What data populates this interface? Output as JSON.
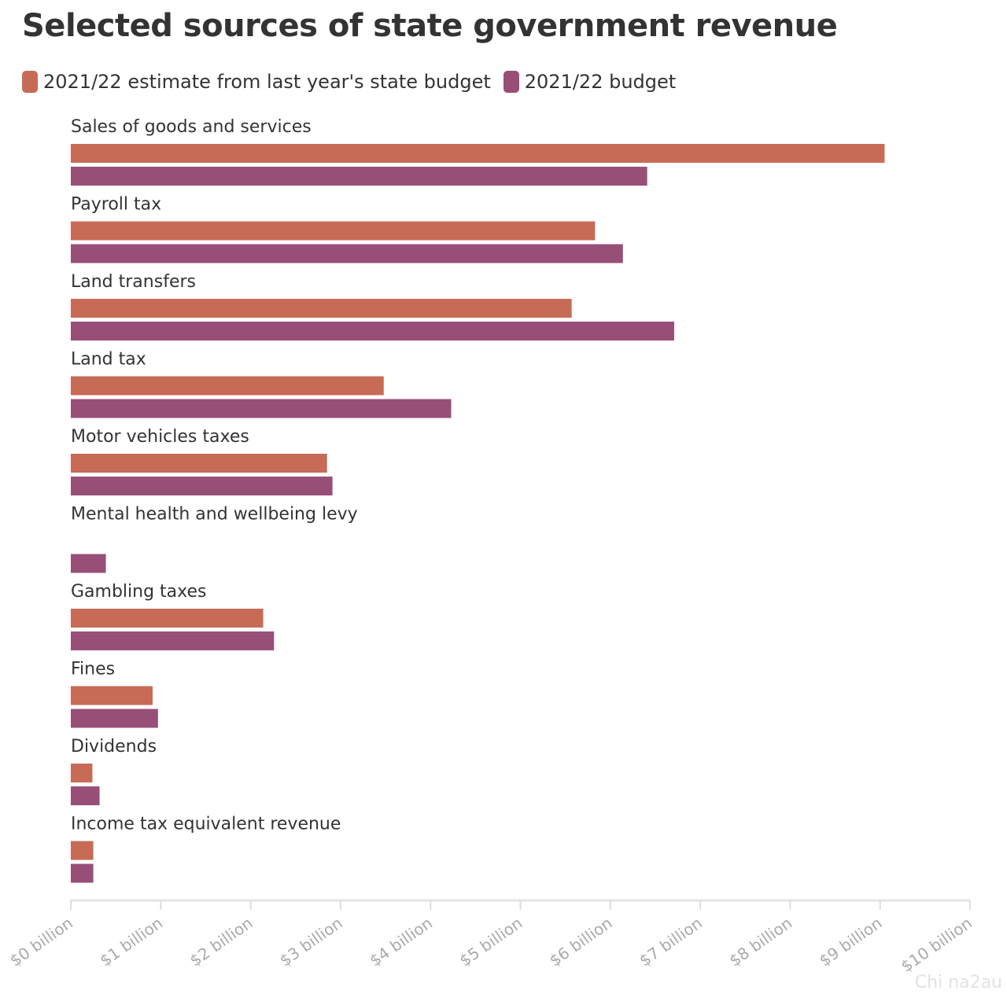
{
  "header": {
    "title": "Selected sources of state government revenue"
  },
  "legend": {
    "items": [
      {
        "label": "2021/22 estimate from last year's state budget",
        "color": "#c76b57"
      },
      {
        "label": "2021/22 budget",
        "color": "#974f78"
      }
    ]
  },
  "watermark": "Chi na2au",
  "chart_data": {
    "type": "bar",
    "orientation": "horizontal",
    "title": "Selected sources of state government revenue",
    "xlabel": "",
    "ylabel": "",
    "xlim": [
      0,
      10
    ],
    "unit": "billion",
    "grid": false,
    "legend_position": "top-left",
    "x_ticks": [
      "$0 billion",
      "$1 billion",
      "$2 billion",
      "$3 billion",
      "$4 billion",
      "$5 billion",
      "$6 billion",
      "$7 billion",
      "$8 billion",
      "$9 billion",
      "$10 billion"
    ],
    "categories": [
      "Sales of goods and services",
      "Payroll tax",
      "Land transfers",
      "Land tax",
      "Motor vehicles taxes",
      "Mental health and wellbeing levy",
      "Gambling taxes",
      "Fines",
      "Dividends",
      "Income tax equivalent revenue"
    ],
    "series": [
      {
        "name": "2021/22 estimate from last year's state budget",
        "color": "#c76b57",
        "values": [
          9.05,
          5.83,
          5.57,
          3.48,
          2.85,
          null,
          2.14,
          0.91,
          0.24,
          0.25
        ]
      },
      {
        "name": "2021/22 budget",
        "color": "#974f78",
        "values": [
          6.41,
          6.14,
          6.71,
          4.23,
          2.91,
          0.39,
          2.26,
          0.97,
          0.32,
          0.25
        ]
      }
    ]
  }
}
